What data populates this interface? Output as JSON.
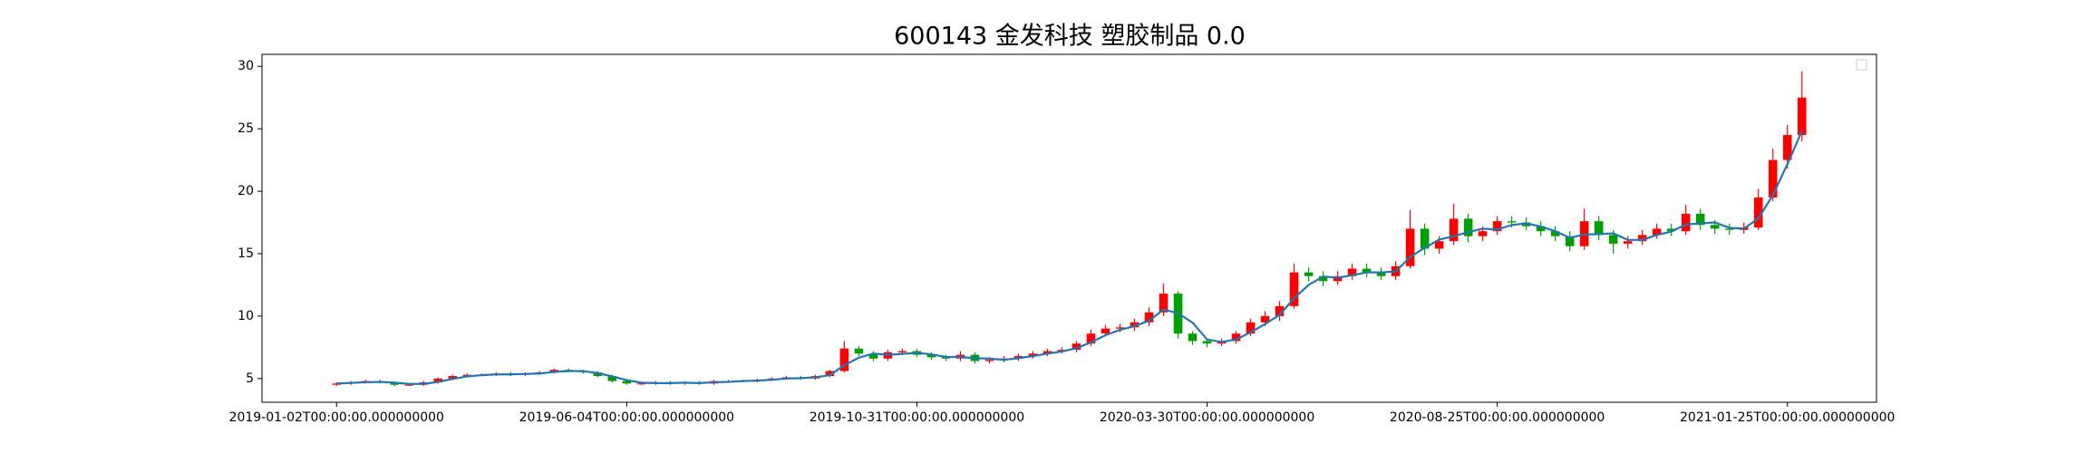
{
  "chart_data": {
    "type": "candlestick",
    "title": "600143 金发科技 塑胶制品 0.0",
    "x": [
      0,
      5,
      10,
      15,
      20,
      25,
      30,
      35,
      40,
      45,
      50,
      55,
      60,
      65,
      70,
      75,
      80,
      85,
      90,
      95,
      100,
      105,
      110,
      115,
      120,
      125,
      130,
      135,
      140,
      145,
      150,
      155,
      160,
      165,
      170,
      175,
      180,
      185,
      190,
      195,
      200,
      205,
      210,
      215,
      220,
      225,
      230,
      235,
      240,
      245,
      250,
      255,
      260,
      265,
      270,
      275,
      280,
      285,
      290,
      295,
      300,
      305,
      310,
      315,
      320,
      325,
      330,
      335,
      340,
      345,
      350,
      355,
      360,
      365,
      370,
      375,
      380,
      385,
      390,
      395,
      400,
      405,
      410,
      415,
      420,
      425,
      430,
      435,
      440,
      445,
      450,
      455,
      460,
      465,
      470,
      475,
      480,
      485,
      490,
      495,
      500,
      505
    ],
    "open": [
      4.5,
      4.6,
      4.7,
      4.8,
      4.7,
      4.5,
      4.5,
      4.7,
      5.0,
      5.2,
      5.3,
      5.3,
      5.4,
      5.3,
      5.4,
      5.5,
      5.7,
      5.6,
      5.5,
      5.2,
      4.8,
      4.6,
      4.6,
      4.7,
      4.6,
      4.7,
      4.6,
      4.8,
      4.8,
      4.8,
      4.9,
      5.0,
      5.1,
      5.0,
      5.2,
      5.6,
      7.4,
      7.0,
      6.6,
      7.1,
      7.2,
      6.9,
      6.7,
      6.6,
      6.9,
      6.4,
      6.5,
      6.6,
      6.8,
      7.0,
      7.2,
      7.3,
      7.8,
      8.6,
      9.0,
      9.1,
      9.5,
      10.3,
      11.8,
      8.6,
      8.0,
      7.8,
      8.0,
      8.6,
      9.5,
      10.0,
      10.8,
      13.5,
      13.2,
      12.8,
      13.2,
      13.8,
      13.5,
      13.2,
      14.0,
      17.0,
      15.4,
      16.0,
      17.8,
      16.4,
      16.8,
      17.6,
      17.5,
      17.2,
      16.8,
      16.4,
      15.6,
      17.6,
      16.5,
      15.8,
      16.0,
      16.5,
      17.0,
      16.8,
      18.2,
      17.3,
      17.0,
      16.9,
      17.1,
      19.5,
      22.5,
      24.5
    ],
    "high": [
      4.7,
      4.8,
      4.9,
      4.9,
      4.8,
      4.6,
      4.8,
      5.1,
      5.3,
      5.4,
      5.4,
      5.5,
      5.5,
      5.5,
      5.6,
      5.8,
      5.8,
      5.7,
      5.6,
      5.3,
      4.9,
      4.7,
      4.8,
      4.8,
      4.8,
      4.8,
      4.9,
      4.9,
      4.9,
      5.0,
      5.1,
      5.2,
      5.2,
      5.3,
      5.7,
      8.0,
      7.6,
      7.2,
      7.3,
      7.4,
      7.4,
      7.1,
      6.9,
      7.2,
      7.1,
      6.7,
      6.8,
      7.0,
      7.2,
      7.4,
      7.5,
      8.0,
      8.9,
      9.3,
      9.4,
      9.8,
      10.7,
      12.6,
      12.0,
      8.8,
      8.2,
      8.2,
      8.8,
      9.8,
      10.4,
      11.2,
      14.2,
      13.9,
      13.6,
      13.6,
      14.2,
      14.2,
      13.9,
      14.4,
      18.5,
      17.4,
      16.4,
      19.0,
      18.2,
      17.2,
      18.0,
      18.0,
      17.9,
      17.6,
      17.2,
      16.8,
      18.6,
      18.0,
      16.9,
      16.4,
      16.9,
      17.4,
      17.4,
      18.9,
      18.6,
      17.7,
      17.4,
      17.5,
      20.2,
      23.4,
      25.3,
      29.6
    ],
    "low": [
      4.4,
      4.5,
      4.6,
      4.6,
      4.4,
      4.4,
      4.4,
      4.6,
      4.9,
      5.1,
      5.2,
      5.2,
      5.2,
      5.2,
      5.3,
      5.4,
      5.5,
      5.4,
      5.1,
      4.7,
      4.5,
      4.5,
      4.5,
      4.5,
      4.5,
      4.5,
      4.5,
      4.7,
      4.7,
      4.7,
      4.8,
      4.9,
      4.9,
      4.9,
      5.1,
      5.5,
      6.8,
      6.4,
      6.4,
      6.9,
      6.7,
      6.5,
      6.4,
      6.4,
      6.2,
      6.2,
      6.3,
      6.4,
      6.6,
      6.8,
      7.0,
      7.1,
      7.6,
      8.4,
      8.7,
      8.8,
      9.2,
      10.0,
      8.2,
      7.7,
      7.5,
      7.6,
      7.8,
      8.4,
      9.2,
      9.6,
      10.6,
      12.8,
      12.4,
      12.5,
      12.9,
      13.1,
      12.9,
      12.9,
      13.8,
      14.9,
      15.0,
      15.7,
      15.9,
      16.0,
      16.5,
      17.1,
      16.9,
      16.4,
      16.0,
      15.2,
      15.3,
      16.1,
      15.0,
      15.4,
      15.7,
      16.2,
      16.4,
      16.5,
      16.9,
      16.6,
      16.5,
      16.6,
      16.9,
      19.2,
      21.8,
      24.0
    ],
    "close": [
      4.6,
      4.7,
      4.8,
      4.7,
      4.5,
      4.5,
      4.7,
      5.0,
      5.2,
      5.3,
      5.3,
      5.4,
      5.3,
      5.4,
      5.5,
      5.7,
      5.6,
      5.5,
      5.2,
      4.8,
      4.6,
      4.6,
      4.7,
      4.6,
      4.7,
      4.6,
      4.8,
      4.8,
      4.8,
      4.9,
      5.0,
      5.1,
      5.0,
      5.2,
      5.6,
      7.4,
      7.0,
      6.6,
      7.1,
      7.2,
      6.9,
      6.7,
      6.6,
      6.9,
      6.4,
      6.5,
      6.6,
      6.8,
      7.0,
      7.2,
      7.3,
      7.8,
      8.6,
      9.0,
      9.1,
      9.5,
      10.3,
      11.8,
      8.6,
      8.0,
      7.8,
      8.0,
      8.6,
      9.5,
      10.0,
      10.8,
      13.5,
      13.2,
      12.8,
      13.2,
      13.8,
      13.5,
      13.2,
      14.0,
      17.0,
      15.4,
      16.0,
      17.8,
      16.4,
      16.8,
      17.6,
      17.5,
      17.2,
      16.8,
      16.4,
      15.6,
      17.6,
      16.5,
      15.8,
      16.0,
      16.5,
      17.0,
      16.8,
      18.2,
      17.3,
      17.0,
      16.9,
      17.1,
      19.5,
      22.5,
      24.5,
      27.5
    ],
    "ma": [
      4.6,
      4.65,
      4.7,
      4.73,
      4.67,
      4.57,
      4.57,
      4.73,
      4.97,
      5.17,
      5.27,
      5.33,
      5.33,
      5.37,
      5.4,
      5.53,
      5.6,
      5.6,
      5.43,
      5.17,
      4.87,
      4.67,
      4.63,
      4.63,
      4.67,
      4.63,
      4.7,
      4.73,
      4.8,
      4.83,
      4.9,
      5.0,
      5.03,
      5.1,
      5.27,
      6.07,
      6.67,
      7.0,
      6.9,
      6.97,
      7.07,
      6.93,
      6.73,
      6.73,
      6.63,
      6.6,
      6.5,
      6.63,
      6.8,
      7.0,
      7.17,
      7.43,
      7.9,
      8.47,
      8.9,
      9.2,
      9.63,
      10.53,
      10.23,
      9.47,
      8.13,
      7.93,
      8.13,
      8.7,
      9.37,
      10.1,
      11.43,
      12.5,
      13.17,
      13.07,
      13.27,
      13.5,
      13.5,
      13.57,
      14.73,
      15.47,
      16.13,
      16.4,
      16.73,
      17.0,
      16.93,
      17.3,
      17.43,
      17.17,
      16.8,
      16.27,
      16.53,
      16.57,
      16.63,
      16.1,
      16.1,
      16.5,
      16.77,
      17.33,
      17.43,
      17.5,
      17.07,
      17.0,
      17.83,
      19.7,
      22.17,
      24.83
    ],
    "ma_color": "#1f77b4",
    "up_color": "#ff0000",
    "down_color": "#00a000",
    "xlim": [
      -25.7,
      530.7
    ],
    "xticks": [
      {
        "value": 0,
        "label": "2019-01-02T00:00:00.000000000"
      },
      {
        "value": 100,
        "label": "2019-06-04T00:00:00.000000000"
      },
      {
        "value": 200,
        "label": "2019-10-31T00:00:00.000000000"
      },
      {
        "value": 300,
        "label": "2020-03-30T00:00:00.000000000"
      },
      {
        "value": 400,
        "label": "2020-08-25T00:00:00.000000000"
      },
      {
        "value": 500,
        "label": "2021-01-25T00:00:00.000000000"
      }
    ],
    "ylim": [
      3.1,
      30.96
    ],
    "yticks": [
      5,
      10,
      15,
      20,
      25,
      30
    ]
  }
}
